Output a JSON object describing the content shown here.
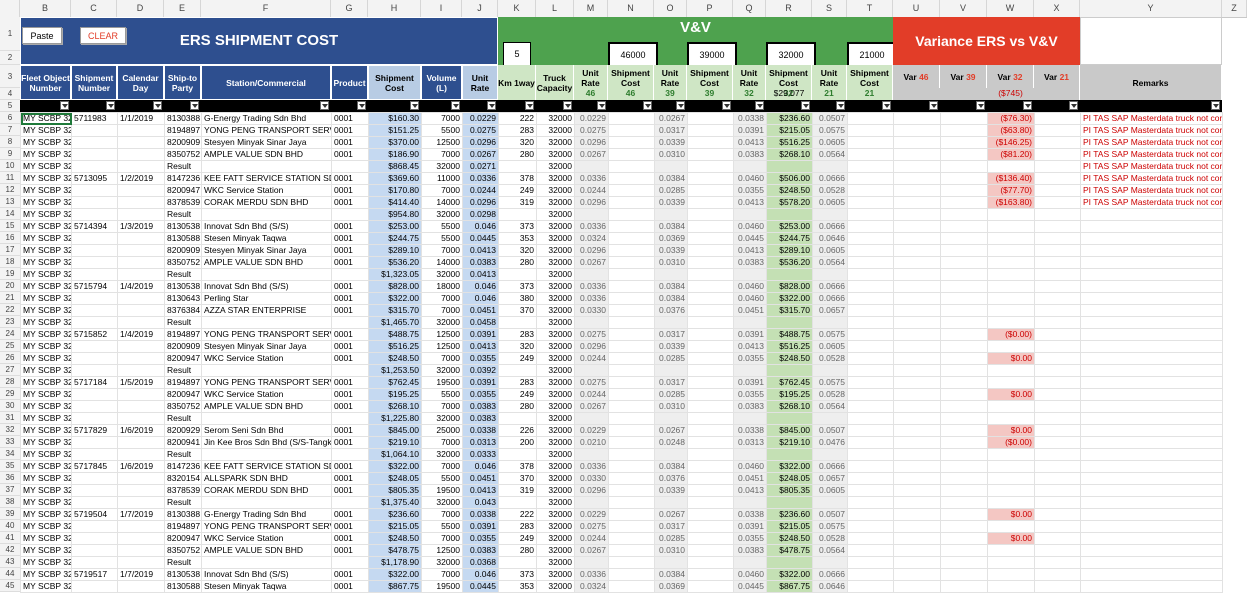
{
  "buttons": {
    "paste": "Paste",
    "clear": "CLEAR"
  },
  "title_ers": "ERS SHIPMENT COST",
  "title_vv": "V&V",
  "title_variance": "Variance ERS vs V&V",
  "columns": [
    "A",
    "B",
    "C",
    "D",
    "E",
    "F",
    "G",
    "H",
    "I",
    "J",
    "K",
    "L",
    "M",
    "N",
    "O",
    "P",
    "Q",
    "R",
    "S",
    "T",
    "U",
    "V",
    "W",
    "X",
    "Y",
    "Z"
  ],
  "headers": {
    "fleet": "Fleet Object Number",
    "shipment_no": "Shipment Number",
    "calendar_day": "Calendar Day",
    "ship_to": "Ship-to Party",
    "station": "Station/Commercial",
    "product": "Product",
    "shipment_cost": "Shipment Cost",
    "volume": "Volume (L)",
    "unit_rate": "Unit Rate",
    "km": "Km 1way",
    "truck": "Truck Capacity",
    "unit_rate_lbl": "Unit Rate",
    "shipment_cost_lbl": "Shipment Cost",
    "var_lbl": "Var",
    "remarks": "Remarks"
  },
  "vv": {
    "km_value": "5",
    "cap": [
      "46000",
      "39000",
      "32000",
      "21000"
    ],
    "suffix": [
      "46",
      "39",
      "32",
      "21"
    ],
    "r4_cost32": "$29,077",
    "r4_var32": "($745)"
  },
  "rows": [
    {
      "n": "6",
      "f": "MY SCBP 32",
      "s": "5711983",
      "d": "1/1/2019",
      "p": "8130388",
      "st": "G-Energy Trading Sdn Bhd",
      "pr": "0001",
      "c": "$160.30",
      "v": "7000",
      "u": "0.0229",
      "k": "222",
      "t": "32000",
      "m": "0.0229",
      "o": "0.0267",
      "q": "0.0338",
      "rr": "$236.60",
      "ss": "0.0507",
      "w": "($76.30)",
      "y": "PI TAS SAP Masterdata truck not corrected y"
    },
    {
      "n": "7",
      "f": "MY SCBP 32",
      "s": "",
      "d": "",
      "p": "8194897",
      "st": "YONG PENG TRANSPORT SERVICE",
      "pr": "0001",
      "c": "$151.25",
      "v": "5500",
      "u": "0.0275",
      "k": "283",
      "t": "32000",
      "m": "0.0275",
      "o": "0.0317",
      "q": "0.0391",
      "rr": "$215.05",
      "ss": "0.0575",
      "w": "($63.80)",
      "y": "PI TAS SAP Masterdata truck not corrected y"
    },
    {
      "n": "8",
      "f": "MY SCBP 32",
      "s": "",
      "d": "",
      "p": "8200909",
      "st": "Stesyen Minyak Sinar Jaya",
      "pr": "0001",
      "c": "$370.00",
      "v": "12500",
      "u": "0.0296",
      "k": "320",
      "t": "32000",
      "m": "0.0296",
      "o": "0.0339",
      "q": "0.0413",
      "rr": "$516.25",
      "ss": "0.0605",
      "w": "($146.25)",
      "y": "PI TAS SAP Masterdata truck not corrected y"
    },
    {
      "n": "9",
      "f": "MY SCBP 32",
      "s": "",
      "d": "",
      "p": "8350752",
      "st": "AMPLE VALUE SDN BHD",
      "pr": "0001",
      "c": "$186.90",
      "v": "7000",
      "u": "0.0267",
      "k": "280",
      "t": "32000",
      "m": "0.0267",
      "o": "0.0310",
      "q": "0.0383",
      "rr": "$268.10",
      "ss": "0.0564",
      "w": "($81.20)",
      "y": "PI TAS SAP Masterdata truck not corrected y"
    },
    {
      "n": "10",
      "f": "MY SCBP 32",
      "s": "",
      "d": "",
      "p": "Result",
      "st": "",
      "pr": "",
      "c": "$868.45",
      "v": "32000",
      "u": "0.0271",
      "k": "",
      "t": "32000",
      "m": "",
      "o": "",
      "q": "",
      "rr": "",
      "ss": "",
      "w": "",
      "y": "PI TAS SAP Masterdata truck not corrected y"
    },
    {
      "n": "11",
      "f": "MY SCBP 32",
      "s": "5713095",
      "d": "1/2/2019",
      "p": "8147236",
      "st": "KEE FATT SERVICE STATION SDN BH",
      "pr": "0001",
      "c": "$369.60",
      "v": "11000",
      "u": "0.0336",
      "k": "378",
      "t": "32000",
      "m": "0.0336",
      "o": "0.0384",
      "q": "0.0460",
      "rr": "$506.00",
      "ss": "0.0666",
      "w": "($136.40)",
      "y": "PI TAS SAP Masterdata truck not corrected y"
    },
    {
      "n": "12",
      "f": "MY SCBP 32",
      "s": "",
      "d": "",
      "p": "8200947",
      "st": "WKC Service Station",
      "pr": "0001",
      "c": "$170.80",
      "v": "7000",
      "u": "0.0244",
      "k": "249",
      "t": "32000",
      "m": "0.0244",
      "o": "0.0285",
      "q": "0.0355",
      "rr": "$248.50",
      "ss": "0.0528",
      "w": "($77.70)",
      "y": "PI TAS SAP Masterdata truck not corrected y"
    },
    {
      "n": "13",
      "f": "MY SCBP 32",
      "s": "",
      "d": "",
      "p": "8378539",
      "st": "CORAK MERDU SDN BHD",
      "pr": "0001",
      "c": "$414.40",
      "v": "14000",
      "u": "0.0296",
      "k": "319",
      "t": "32000",
      "m": "0.0296",
      "o": "0.0339",
      "q": "0.0413",
      "rr": "$578.20",
      "ss": "0.0605",
      "w": "($163.80)",
      "y": "PI TAS SAP Masterdata truck not corrected y"
    },
    {
      "n": "14",
      "f": "MY SCBP 32",
      "s": "",
      "d": "",
      "p": "Result",
      "st": "",
      "pr": "",
      "c": "$954.80",
      "v": "32000",
      "u": "0.0298",
      "k": "",
      "t": "32000",
      "m": "",
      "o": "",
      "q": "",
      "rr": "",
      "ss": "",
      "w": "",
      "y": ""
    },
    {
      "n": "15",
      "f": "MY SCBP 32",
      "s": "5714394",
      "d": "1/3/2019",
      "p": "8130538",
      "st": "Innovat Sdn Bhd (S/S)",
      "pr": "0001",
      "c": "$253.00",
      "v": "5500",
      "u": "0.046",
      "k": "373",
      "t": "32000",
      "m": "0.0336",
      "o": "0.0384",
      "q": "0.0460",
      "rr": "$253.00",
      "ss": "0.0666",
      "w": "",
      "y": ""
    },
    {
      "n": "16",
      "f": "MY SCBP 32",
      "s": "",
      "d": "",
      "p": "8130588",
      "st": "Stesen Minyak Taqwa",
      "pr": "0001",
      "c": "$244.75",
      "v": "5500",
      "u": "0.0445",
      "k": "353",
      "t": "32000",
      "m": "0.0324",
      "o": "0.0369",
      "q": "0.0445",
      "rr": "$244.75",
      "ss": "0.0646",
      "w": "",
      "y": ""
    },
    {
      "n": "17",
      "f": "MY SCBP 32",
      "s": "",
      "d": "",
      "p": "8200909",
      "st": "Stesyen Minyak Sinar Jaya",
      "pr": "0001",
      "c": "$289.10",
      "v": "7000",
      "u": "0.0413",
      "k": "320",
      "t": "32000",
      "m": "0.0296",
      "o": "0.0339",
      "q": "0.0413",
      "rr": "$289.10",
      "ss": "0.0605",
      "w": "",
      "y": ""
    },
    {
      "n": "18",
      "f": "MY SCBP 32",
      "s": "",
      "d": "",
      "p": "8350752",
      "st": "AMPLE VALUE SDN BHD",
      "pr": "0001",
      "c": "$536.20",
      "v": "14000",
      "u": "0.0383",
      "k": "280",
      "t": "32000",
      "m": "0.0267",
      "o": "0.0310",
      "q": "0.0383",
      "rr": "$536.20",
      "ss": "0.0564",
      "w": "",
      "y": ""
    },
    {
      "n": "19",
      "f": "MY SCBP 32",
      "s": "",
      "d": "",
      "p": "Result",
      "st": "",
      "pr": "",
      "c": "$1,323.05",
      "v": "32000",
      "u": "0.0413",
      "k": "",
      "t": "32000",
      "m": "",
      "o": "",
      "q": "",
      "rr": "",
      "ss": "",
      "w": "",
      "y": ""
    },
    {
      "n": "20",
      "f": "MY SCBP 32",
      "s": "5715794",
      "d": "1/4/2019",
      "p": "8130538",
      "st": "Innovat Sdn Bhd (S/S)",
      "pr": "0001",
      "c": "$828.00",
      "v": "18000",
      "u": "0.046",
      "k": "373",
      "t": "32000",
      "m": "0.0336",
      "o": "0.0384",
      "q": "0.0460",
      "rr": "$828.00",
      "ss": "0.0666",
      "w": "",
      "y": ""
    },
    {
      "n": "21",
      "f": "MY SCBP 32",
      "s": "",
      "d": "",
      "p": "8130643",
      "st": "Perling Star",
      "pr": "0001",
      "c": "$322.00",
      "v": "7000",
      "u": "0.046",
      "k": "380",
      "t": "32000",
      "m": "0.0336",
      "o": "0.0384",
      "q": "0.0460",
      "rr": "$322.00",
      "ss": "0.0666",
      "w": "",
      "y": ""
    },
    {
      "n": "22",
      "f": "MY SCBP 32",
      "s": "",
      "d": "",
      "p": "8376384",
      "st": "AZZA STAR ENTERPRISE",
      "pr": "0001",
      "c": "$315.70",
      "v": "7000",
      "u": "0.0451",
      "k": "370",
      "t": "32000",
      "m": "0.0330",
      "o": "0.0376",
      "q": "0.0451",
      "rr": "$315.70",
      "ss": "0.0657",
      "w": "",
      "y": ""
    },
    {
      "n": "23",
      "f": "MY SCBP 32",
      "s": "",
      "d": "",
      "p": "Result",
      "st": "",
      "pr": "",
      "c": "$1,465.70",
      "v": "32000",
      "u": "0.0458",
      "k": "",
      "t": "32000",
      "m": "",
      "o": "",
      "q": "",
      "rr": "",
      "ss": "",
      "w": "",
      "y": ""
    },
    {
      "n": "24",
      "f": "MY SCBP 32",
      "s": "5715852",
      "d": "1/4/2019",
      "p": "8194897",
      "st": "YONG PENG TRANSPORT SERVICE",
      "pr": "0001",
      "c": "$488.75",
      "v": "12500",
      "u": "0.0391",
      "k": "283",
      "t": "32000",
      "m": "0.0275",
      "o": "0.0317",
      "q": "0.0391",
      "rr": "$488.75",
      "ss": "0.0575",
      "w": "($0.00)",
      "y": ""
    },
    {
      "n": "25",
      "f": "MY SCBP 32",
      "s": "",
      "d": "",
      "p": "8200909",
      "st": "Stesyen Minyak Sinar Jaya",
      "pr": "0001",
      "c": "$516.25",
      "v": "12500",
      "u": "0.0413",
      "k": "320",
      "t": "32000",
      "m": "0.0296",
      "o": "0.0339",
      "q": "0.0413",
      "rr": "$516.25",
      "ss": "0.0605",
      "w": "",
      "y": ""
    },
    {
      "n": "26",
      "f": "MY SCBP 32",
      "s": "",
      "d": "",
      "p": "8200947",
      "st": "WKC Service Station",
      "pr": "0001",
      "c": "$248.50",
      "v": "7000",
      "u": "0.0355",
      "k": "249",
      "t": "32000",
      "m": "0.0244",
      "o": "0.0285",
      "q": "0.0355",
      "rr": "$248.50",
      "ss": "0.0528",
      "w": "$0.00",
      "y": ""
    },
    {
      "n": "27",
      "f": "MY SCBP 32",
      "s": "",
      "d": "",
      "p": "Result",
      "st": "",
      "pr": "",
      "c": "$1,253.50",
      "v": "32000",
      "u": "0.0392",
      "k": "",
      "t": "32000",
      "m": "",
      "o": "",
      "q": "",
      "rr": "",
      "ss": "",
      "w": "",
      "y": ""
    },
    {
      "n": "28",
      "f": "MY SCBP 32",
      "s": "5717184",
      "d": "1/5/2019",
      "p": "8194897",
      "st": "YONG PENG TRANSPORT SERVICE",
      "pr": "0001",
      "c": "$762.45",
      "v": "19500",
      "u": "0.0391",
      "k": "283",
      "t": "32000",
      "m": "0.0275",
      "o": "0.0317",
      "q": "0.0391",
      "rr": "$762.45",
      "ss": "0.0575",
      "w": "",
      "y": ""
    },
    {
      "n": "29",
      "f": "MY SCBP 32",
      "s": "",
      "d": "",
      "p": "8200947",
      "st": "WKC Service Station",
      "pr": "0001",
      "c": "$195.25",
      "v": "5500",
      "u": "0.0355",
      "k": "249",
      "t": "32000",
      "m": "0.0244",
      "o": "0.0285",
      "q": "0.0355",
      "rr": "$195.25",
      "ss": "0.0528",
      "w": "$0.00",
      "y": ""
    },
    {
      "n": "30",
      "f": "MY SCBP 32",
      "s": "",
      "d": "",
      "p": "8350752",
      "st": "AMPLE VALUE SDN BHD",
      "pr": "0001",
      "c": "$268.10",
      "v": "7000",
      "u": "0.0383",
      "k": "280",
      "t": "32000",
      "m": "0.0267",
      "o": "0.0310",
      "q": "0.0383",
      "rr": "$268.10",
      "ss": "0.0564",
      "w": "",
      "y": ""
    },
    {
      "n": "31",
      "f": "MY SCBP 32",
      "s": "",
      "d": "",
      "p": "Result",
      "st": "",
      "pr": "",
      "c": "$1,225.80",
      "v": "32000",
      "u": "0.0383",
      "k": "",
      "t": "32000",
      "m": "",
      "o": "",
      "q": "",
      "rr": "",
      "ss": "",
      "w": "",
      "y": ""
    },
    {
      "n": "32",
      "f": "MY SCBP 32",
      "s": "5717829",
      "d": "1/6/2019",
      "p": "8200929",
      "st": "Serom Seni Sdn Bhd",
      "pr": "0001",
      "c": "$845.00",
      "v": "25000",
      "u": "0.0338",
      "k": "226",
      "t": "32000",
      "m": "0.0229",
      "o": "0.0267",
      "q": "0.0338",
      "rr": "$845.00",
      "ss": "0.0507",
      "w": "$0.00",
      "y": ""
    },
    {
      "n": "33",
      "f": "MY SCBP 32",
      "s": "",
      "d": "",
      "p": "8200941",
      "st": "Jin Kee Bros Sdn Bhd (S/S-Tangkak",
      "pr": "0001",
      "c": "$219.10",
      "v": "7000",
      "u": "0.0313",
      "k": "200",
      "t": "32000",
      "m": "0.0210",
      "o": "0.0248",
      "q": "0.0313",
      "rr": "$219.10",
      "ss": "0.0476",
      "w": "($0.00)",
      "y": ""
    },
    {
      "n": "34",
      "f": "MY SCBP 32",
      "s": "",
      "d": "",
      "p": "Result",
      "st": "",
      "pr": "",
      "c": "$1,064.10",
      "v": "32000",
      "u": "0.0333",
      "k": "",
      "t": "32000",
      "m": "",
      "o": "",
      "q": "",
      "rr": "",
      "ss": "",
      "w": "",
      "y": ""
    },
    {
      "n": "35",
      "f": "MY SCBP 32",
      "s": "5717845",
      "d": "1/6/2019",
      "p": "8147236",
      "st": "KEE FATT SERVICE STATION SDN BH",
      "pr": "0001",
      "c": "$322.00",
      "v": "7000",
      "u": "0.046",
      "k": "378",
      "t": "32000",
      "m": "0.0336",
      "o": "0.0384",
      "q": "0.0460",
      "rr": "$322.00",
      "ss": "0.0666",
      "w": "",
      "y": ""
    },
    {
      "n": "36",
      "f": "MY SCBP 32",
      "s": "",
      "d": "",
      "p": "8320154",
      "st": "ALLSPARK SDN BHD",
      "pr": "0001",
      "c": "$248.05",
      "v": "5500",
      "u": "0.0451",
      "k": "370",
      "t": "32000",
      "m": "0.0330",
      "o": "0.0376",
      "q": "0.0451",
      "rr": "$248.05",
      "ss": "0.0657",
      "w": "",
      "y": ""
    },
    {
      "n": "37",
      "f": "MY SCBP 32",
      "s": "",
      "d": "",
      "p": "8378539",
      "st": "CORAK MERDU SDN BHD",
      "pr": "0001",
      "c": "$805.35",
      "v": "19500",
      "u": "0.0413",
      "k": "319",
      "t": "32000",
      "m": "0.0296",
      "o": "0.0339",
      "q": "0.0413",
      "rr": "$805.35",
      "ss": "0.0605",
      "w": "",
      "y": ""
    },
    {
      "n": "38",
      "f": "MY SCBP 32",
      "s": "",
      "d": "",
      "p": "Result",
      "st": "",
      "pr": "",
      "c": "$1,375.40",
      "v": "32000",
      "u": "0.043",
      "k": "",
      "t": "32000",
      "m": "",
      "o": "",
      "q": "",
      "rr": "",
      "ss": "",
      "w": "",
      "y": ""
    },
    {
      "n": "39",
      "f": "MY SCBP 32",
      "s": "5719504",
      "d": "1/7/2019",
      "p": "8130388",
      "st": "G-Energy Trading Sdn Bhd",
      "pr": "0001",
      "c": "$236.60",
      "v": "7000",
      "u": "0.0338",
      "k": "222",
      "t": "32000",
      "m": "0.0229",
      "o": "0.0267",
      "q": "0.0338",
      "rr": "$236.60",
      "ss": "0.0507",
      "w": "$0.00",
      "y": ""
    },
    {
      "n": "40",
      "f": "MY SCBP 32",
      "s": "",
      "d": "",
      "p": "8194897",
      "st": "YONG PENG TRANSPORT SERVICE",
      "pr": "0001",
      "c": "$215.05",
      "v": "5500",
      "u": "0.0391",
      "k": "283",
      "t": "32000",
      "m": "0.0275",
      "o": "0.0317",
      "q": "0.0391",
      "rr": "$215.05",
      "ss": "0.0575",
      "w": "",
      "y": ""
    },
    {
      "n": "41",
      "f": "MY SCBP 32",
      "s": "",
      "d": "",
      "p": "8200947",
      "st": "WKC Service Station",
      "pr": "0001",
      "c": "$248.50",
      "v": "7000",
      "u": "0.0355",
      "k": "249",
      "t": "32000",
      "m": "0.0244",
      "o": "0.0285",
      "q": "0.0355",
      "rr": "$248.50",
      "ss": "0.0528",
      "w": "$0.00",
      "y": ""
    },
    {
      "n": "42",
      "f": "MY SCBP 32",
      "s": "",
      "d": "",
      "p": "8350752",
      "st": "AMPLE VALUE SDN BHD",
      "pr": "0001",
      "c": "$478.75",
      "v": "12500",
      "u": "0.0383",
      "k": "280",
      "t": "32000",
      "m": "0.0267",
      "o": "0.0310",
      "q": "0.0383",
      "rr": "$478.75",
      "ss": "0.0564",
      "w": "",
      "y": ""
    },
    {
      "n": "43",
      "f": "MY SCBP 32",
      "s": "",
      "d": "",
      "p": "Result",
      "st": "",
      "pr": "",
      "c": "$1,178.90",
      "v": "32000",
      "u": "0.0368",
      "k": "",
      "t": "32000",
      "m": "",
      "o": "",
      "q": "",
      "rr": "",
      "ss": "",
      "w": "",
      "y": ""
    },
    {
      "n": "44",
      "f": "MY SCBP 32",
      "s": "5719517",
      "d": "1/7/2019",
      "p": "8130538",
      "st": "Innovat Sdn Bhd (S/S)",
      "pr": "0001",
      "c": "$322.00",
      "v": "7000",
      "u": "0.046",
      "k": "373",
      "t": "32000",
      "m": "0.0336",
      "o": "0.0384",
      "q": "0.0460",
      "rr": "$322.00",
      "ss": "0.0666",
      "w": "",
      "y": ""
    },
    {
      "n": "45",
      "f": "MY SCBP 32",
      "s": "",
      "d": "",
      "p": "8130588",
      "st": "Stesen Minyak Taqwa",
      "pr": "0001",
      "c": "$867.75",
      "v": "19500",
      "u": "0.0445",
      "k": "353",
      "t": "32000",
      "m": "0.0324",
      "o": "0.0369",
      "q": "0.0445",
      "rr": "$867.75",
      "ss": "0.0646",
      "w": "",
      "y": ""
    }
  ]
}
